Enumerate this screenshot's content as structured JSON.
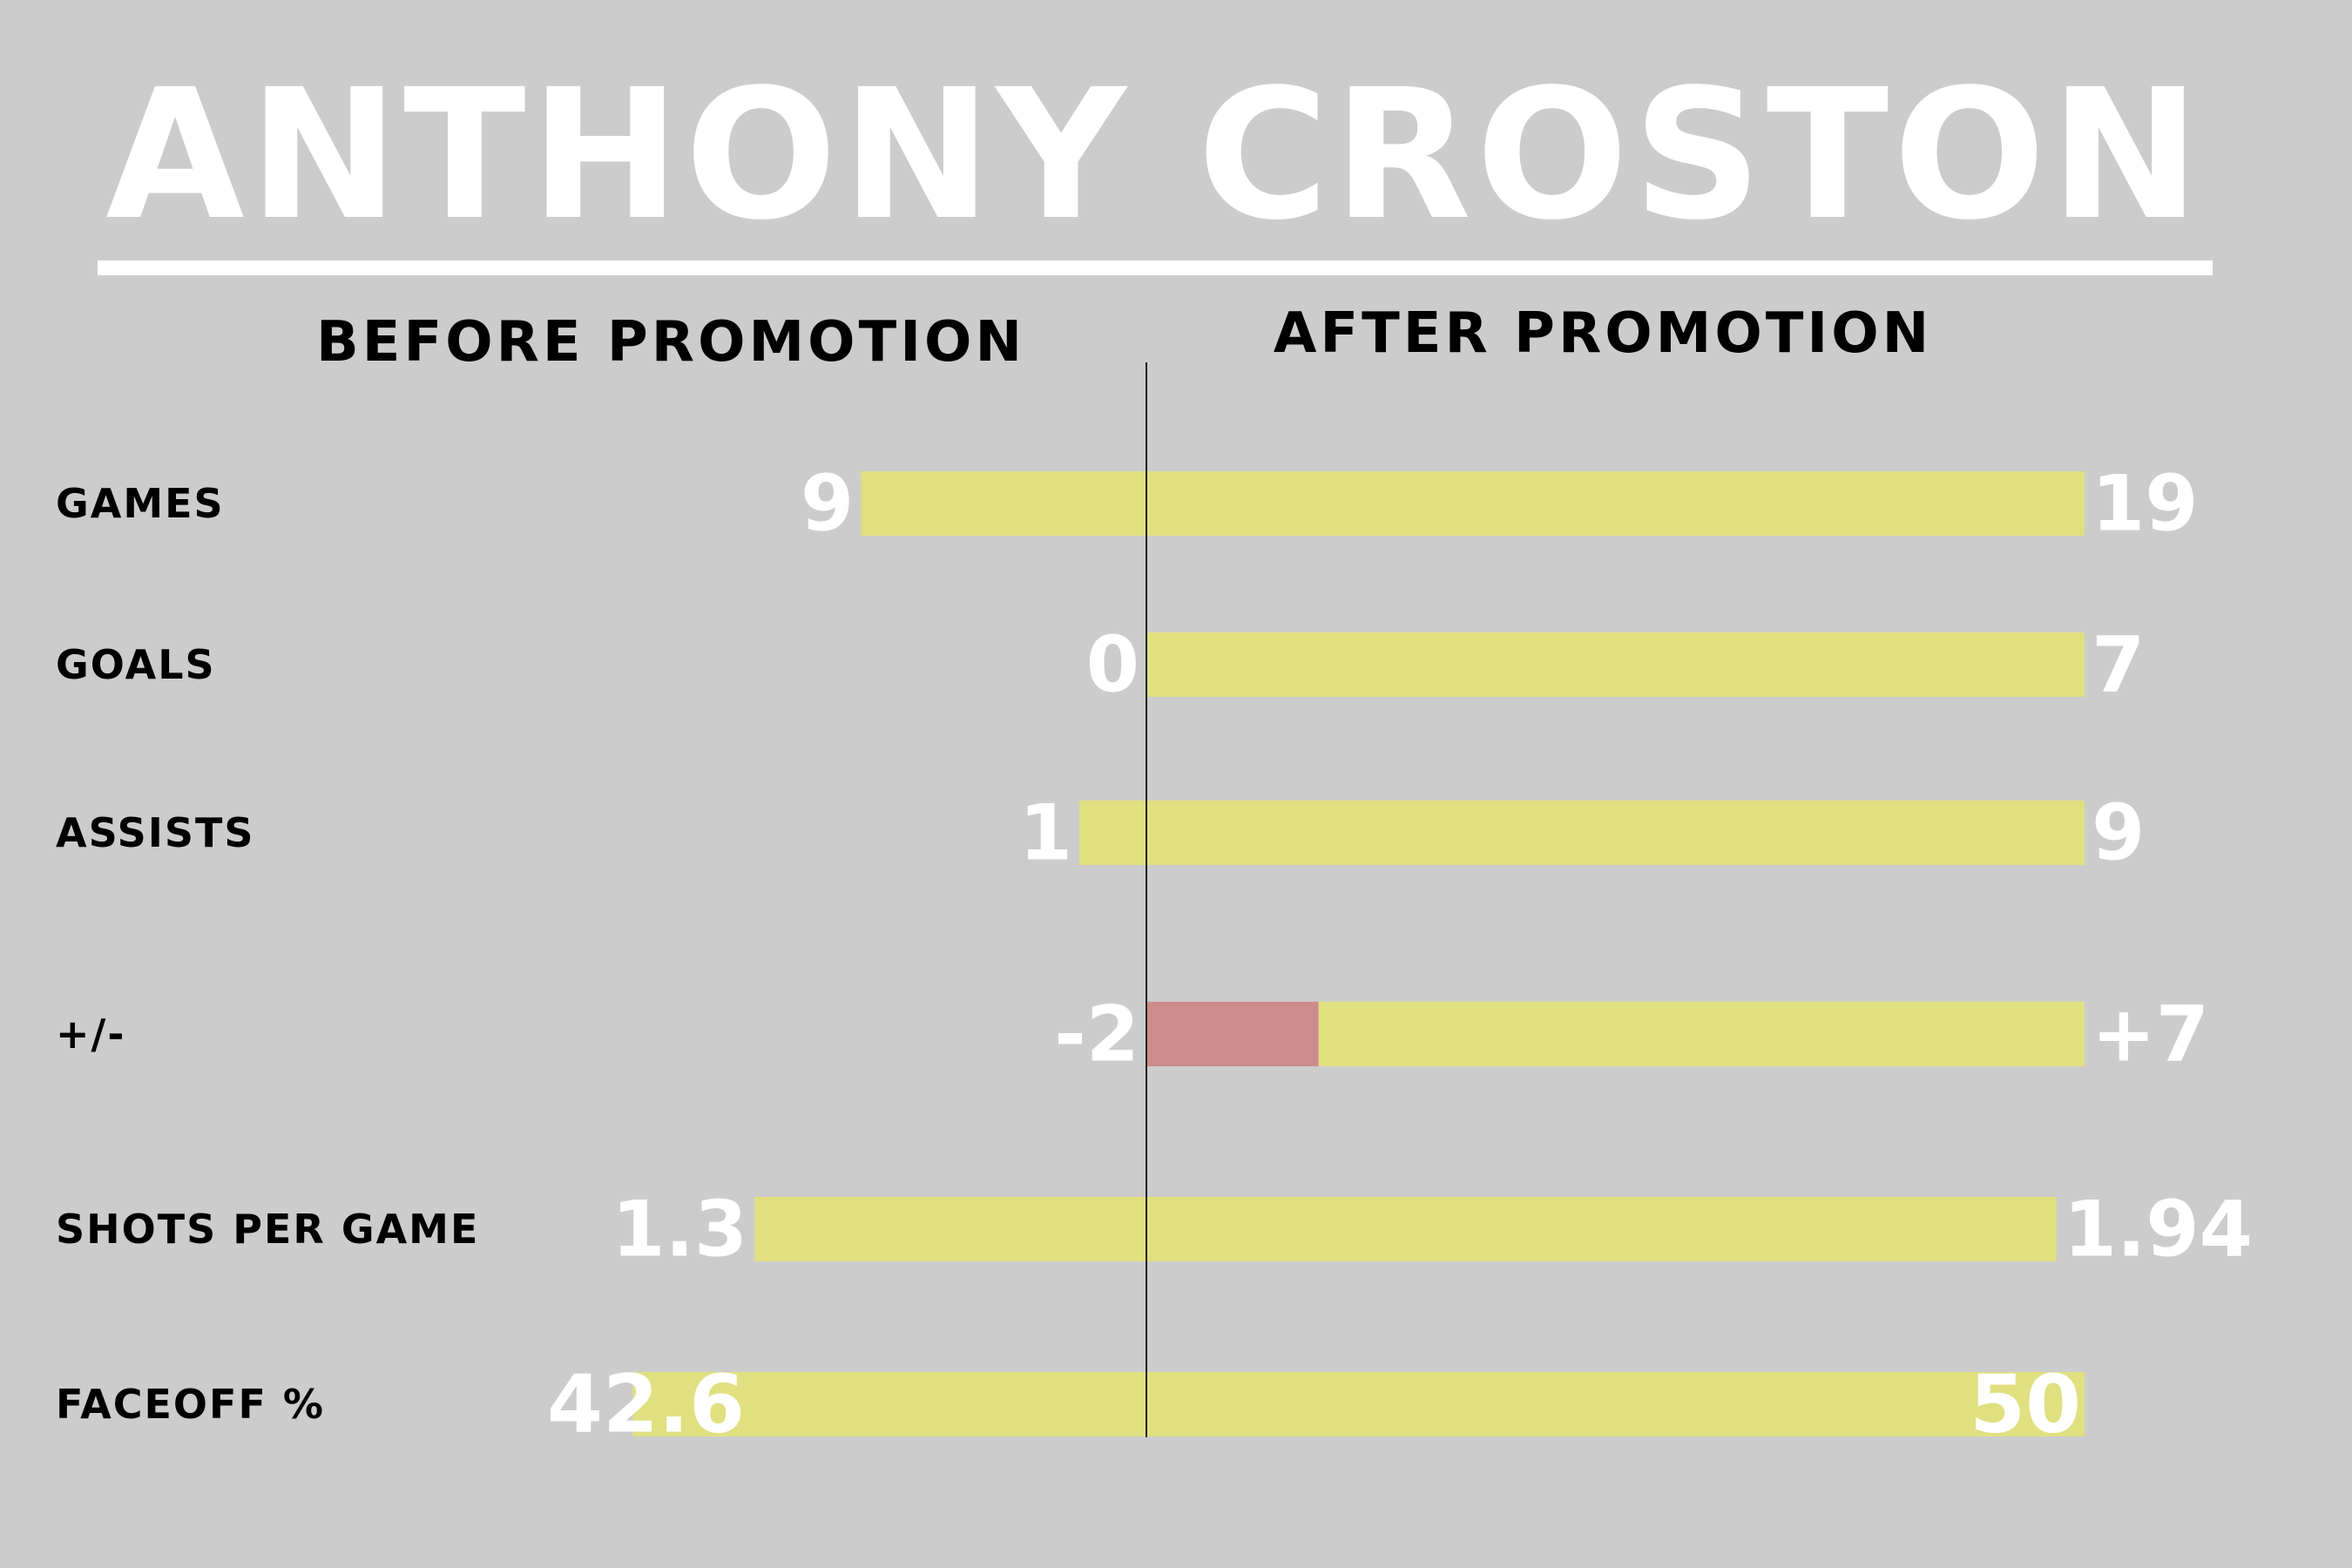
{
  "title": "ANTHONY CROSTON",
  "before_label": "BEFORE PROMOTION",
  "after_label": "AFTER PROMOTION",
  "colors": {
    "background": "#cccccc",
    "bar": "#e0e080",
    "negative": "#cd8b8b",
    "value_text": "#ffffff",
    "label_text": "#000000",
    "divider": "#222222"
  },
  "chart_data": {
    "type": "bar",
    "orientation": "diverging-horizontal",
    "title": "ANTHONY CROSTON",
    "xlabel": "",
    "ylabel": "",
    "categories": [
      "GAMES",
      "GOALS",
      "ASSISTS",
      "+/-",
      "SHOTS PER GAME",
      "FACEOFF %"
    ],
    "series": [
      {
        "name": "BEFORE PROMOTION",
        "values": [
          9,
          0,
          1,
          -2,
          1.3,
          42.6
        ],
        "labels": [
          "9",
          "0",
          "1",
          "-2",
          "1.3",
          "42.6"
        ]
      },
      {
        "name": "AFTER PROMOTION",
        "values": [
          19,
          7,
          9,
          7,
          1.94,
          50
        ],
        "labels": [
          "19",
          "7",
          "9",
          "+7",
          "1.94",
          "50"
        ]
      }
    ],
    "row_max": [
      19,
      7,
      9,
      7,
      2,
      50
    ],
    "grid": false,
    "legend": "none"
  }
}
